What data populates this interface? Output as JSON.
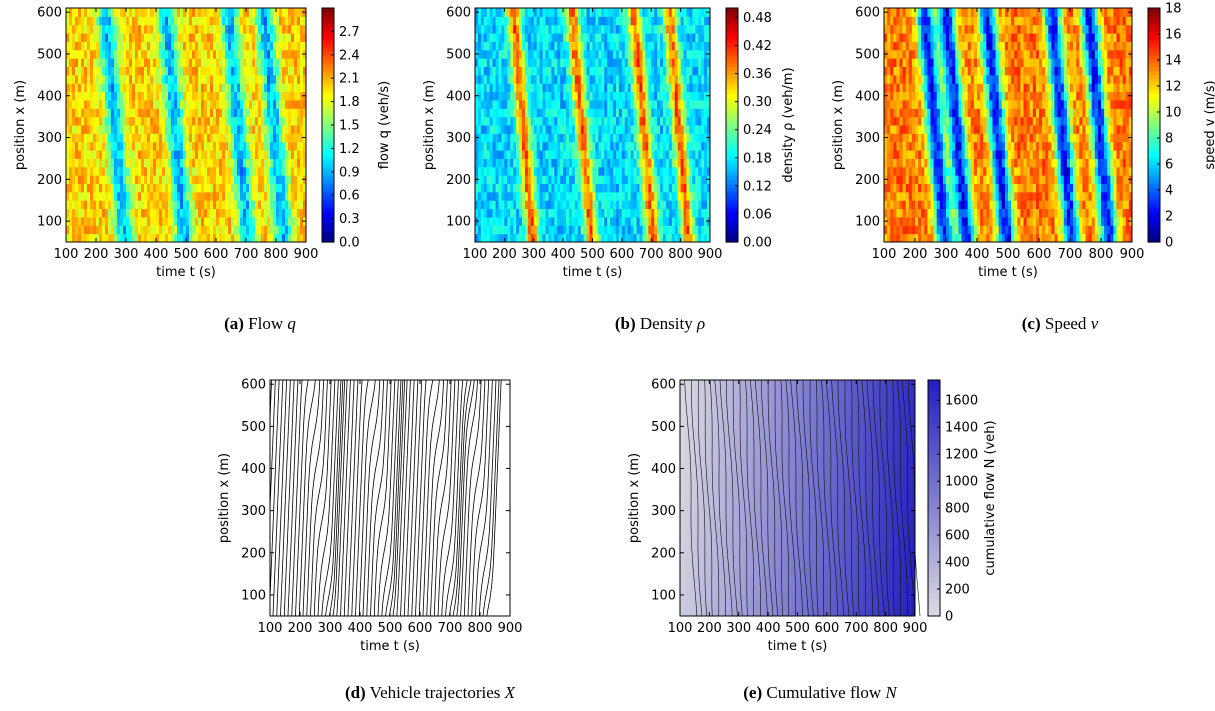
{
  "chart_data": [
    {
      "id": "a",
      "type": "heatmap",
      "caption": {
        "label": "(a)",
        "text": "Flow",
        "symbol": "q"
      },
      "xlabel": "time t (s)",
      "ylabel": "position x (m)",
      "xlim": [
        100,
        900
      ],
      "ylim": [
        50,
        610
      ],
      "xticks": [
        "100",
        "200",
        "300",
        "400",
        "500",
        "600",
        "700",
        "800",
        "900"
      ],
      "yticks": [
        "100",
        "200",
        "300",
        "400",
        "500",
        "600"
      ],
      "colorbar": {
        "label": "flow q (veh/s)",
        "range": [
          0,
          3.0
        ],
        "colormap": "jet",
        "ticks": [
          "0.0",
          "0.3",
          "0.6",
          "0.9",
          "1.2",
          "1.5",
          "1.8",
          "2.1",
          "2.4",
          "2.7"
        ]
      },
      "pattern": {
        "base": 2.0,
        "wave_centers": [
          230,
          430,
          640,
          760
        ],
        "wave_amplitude": -1.1,
        "wave_width": 30,
        "wave_slope_s_per_m": 0.12
      }
    },
    {
      "id": "b",
      "type": "heatmap",
      "caption": {
        "label": "(b)",
        "text": "Density",
        "symbol": "ρ"
      },
      "xlabel": "time t (s)",
      "ylabel": "position x (m)",
      "xlim": [
        100,
        900
      ],
      "ylim": [
        50,
        610
      ],
      "xticks": [
        "100",
        "200",
        "300",
        "400",
        "500",
        "600",
        "700",
        "800",
        "900"
      ],
      "yticks": [
        "100",
        "200",
        "300",
        "400",
        "500",
        "600"
      ],
      "colorbar": {
        "label": "density ρ (veh/m)",
        "range": [
          0,
          0.5
        ],
        "colormap": "jet",
        "ticks": [
          "0.00",
          "0.06",
          "0.12",
          "0.18",
          "0.24",
          "0.30",
          "0.36",
          "0.42",
          "0.48"
        ]
      },
      "pattern": {
        "base": 0.17,
        "wave_centers": [
          230,
          430,
          640,
          760
        ],
        "wave_amplitude": 0.22,
        "wave_width": 22,
        "wave_slope_s_per_m": 0.12
      }
    },
    {
      "id": "c",
      "type": "heatmap",
      "caption": {
        "label": "(c)",
        "text": "Speed",
        "symbol": "v"
      },
      "xlabel": "time t (s)",
      "ylabel": "position x (m)",
      "xlim": [
        100,
        900
      ],
      "ylim": [
        50,
        610
      ],
      "xticks": [
        "100",
        "200",
        "300",
        "400",
        "500",
        "600",
        "700",
        "800",
        "900"
      ],
      "yticks": [
        "100",
        "200",
        "300",
        "400",
        "500",
        "600"
      ],
      "colorbar": {
        "label": "speed v (m/s)",
        "range": [
          0,
          18
        ],
        "colormap": "jet",
        "ticks": [
          "0",
          "2",
          "4",
          "6",
          "8",
          "10",
          "12",
          "14",
          "16",
          "18"
        ]
      },
      "pattern": {
        "base": 13.5,
        "wave_centers": [
          230,
          300,
          430,
          640,
          760
        ],
        "wave_amplitude": -11,
        "wave_width": 28,
        "wave_slope_s_per_m": 0.12
      }
    },
    {
      "id": "d",
      "type": "line",
      "caption": {
        "label": "(d)",
        "text": "Vehicle trajectories",
        "symbol": "X"
      },
      "xlabel": "time t (s)",
      "ylabel": "position x (m)",
      "xlim": [
        100,
        900
      ],
      "ylim": [
        50,
        610
      ],
      "xticks": [
        "100",
        "200",
        "300",
        "400",
        "500",
        "600",
        "700",
        "800",
        "900"
      ],
      "yticks": [
        "100",
        "200",
        "300",
        "400",
        "500",
        "600"
      ],
      "trajectories": {
        "count": 62,
        "first_entry_time": 100,
        "entry_spacing_s": 12.5,
        "free_speed_m_per_s": 17,
        "jam_waves": [
          230,
          430,
          640,
          760
        ]
      }
    },
    {
      "id": "e",
      "type": "heatmap",
      "caption": {
        "label": "(e)",
        "text": "Cumulative flow",
        "symbol": "N"
      },
      "xlabel": "time t (s)",
      "ylabel": "position x (m)",
      "xlim": [
        100,
        900
      ],
      "ylim": [
        50,
        610
      ],
      "xticks": [
        "100",
        "200",
        "300",
        "400",
        "500",
        "600",
        "700",
        "800",
        "900"
      ],
      "yticks": [
        "100",
        "200",
        "300",
        "400",
        "500",
        "600"
      ],
      "colorbar": {
        "label": "cumulative flow N (veh)",
        "range": [
          0,
          1750
        ],
        "colormap": "purples",
        "ticks": [
          "0",
          "200",
          "400",
          "600",
          "800",
          "1000",
          "1200",
          "1400",
          "1600"
        ]
      },
      "pattern": {
        "rate_veh_per_s": 2.0,
        "contour_levels": 40
      }
    }
  ]
}
